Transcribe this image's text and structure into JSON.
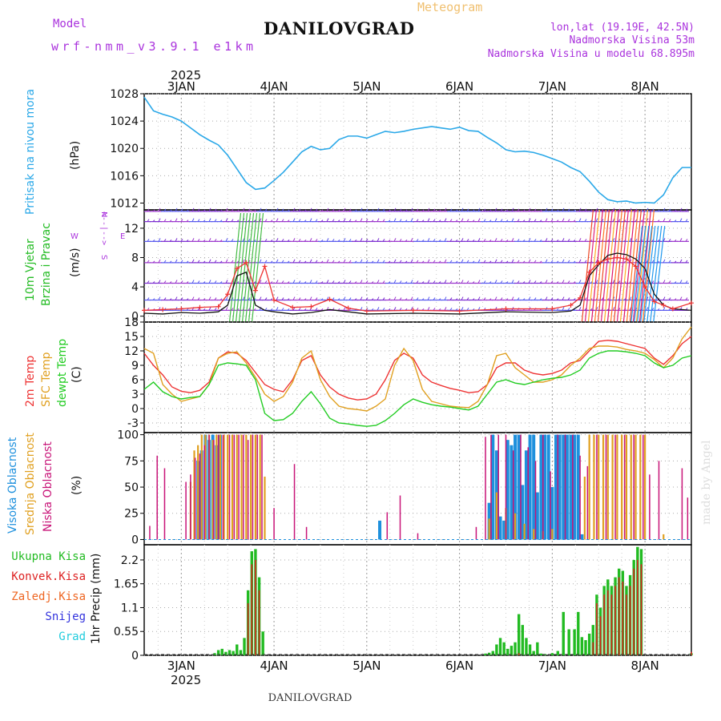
{
  "header": {
    "model_label": "Model",
    "model_name": "wrf-nmm_v3.9.1  e1km",
    "title": "DANILOVGRAD",
    "subtitle": "Meteogram",
    "lonlat": "lon,lat (19.19E, 42.5N)",
    "elev": "Nadmorska Visina 53m",
    "elev_model": "Nadmorska Visina u modelu 68.895m",
    "credit": "made by Angel",
    "footer": "DANILOVGRAD"
  },
  "colors": {
    "pressure": "#2aa8e8",
    "wind_labels": "#22bb22",
    "temp2m": "#ee3333",
    "sfc": "#e0a020",
    "dewpt": "#22cc22",
    "high_cloud": "#1e90dd",
    "mid_cloud": "#e0a020",
    "low_cloud": "#c81478",
    "precip_total": "#22bb22",
    "precip_conv": "#dd2222",
    "frozen": "#ee6622",
    "snow": "#3333dd",
    "hail": "#22ccdd",
    "purple": "#aa33dd"
  },
  "chart_data": [
    {
      "type": "line",
      "name": "pressure",
      "ylabel": [
        "Pritisak na nivou mora",
        "(hPa)"
      ],
      "ylim": [
        1011,
        1028
      ],
      "yticks": [
        1012,
        1016,
        1020,
        1024,
        1028
      ],
      "xlim": [
        2.6,
        8.5
      ],
      "x_top_labels": {
        "year": "2025",
        "days": [
          "3JAN",
          "4JAN",
          "5JAN",
          "6JAN",
          "7JAN",
          "8JAN"
        ]
      },
      "x": [
        2.6,
        2.7,
        2.8,
        2.9,
        3.0,
        3.1,
        3.2,
        3.3,
        3.4,
        3.5,
        3.6,
        3.7,
        3.8,
        3.9,
        4.0,
        4.1,
        4.2,
        4.3,
        4.4,
        4.5,
        4.6,
        4.7,
        4.8,
        4.9,
        5.0,
        5.1,
        5.2,
        5.3,
        5.4,
        5.5,
        5.6,
        5.7,
        5.8,
        5.9,
        6.0,
        6.1,
        6.2,
        6.3,
        6.4,
        6.5,
        6.6,
        6.7,
        6.8,
        6.9,
        7.0,
        7.1,
        7.2,
        7.3,
        7.4,
        7.5,
        7.6,
        7.7,
        7.8,
        7.9,
        8.0,
        8.1,
        8.2,
        8.3,
        8.4,
        8.5
      ],
      "values": [
        1027.5,
        1025.5,
        1025.0,
        1024.6,
        1024.0,
        1023.0,
        1022.0,
        1021.2,
        1020.5,
        1019.0,
        1017.0,
        1015.0,
        1014.0,
        1014.2,
        1015.3,
        1016.5,
        1018.0,
        1019.5,
        1020.3,
        1019.8,
        1020.0,
        1021.3,
        1021.8,
        1021.8,
        1021.5,
        1022.0,
        1022.5,
        1022.3,
        1022.5,
        1022.8,
        1023.0,
        1023.2,
        1023.0,
        1022.8,
        1023.1,
        1022.6,
        1022.5,
        1021.6,
        1020.8,
        1019.8,
        1019.5,
        1019.6,
        1019.4,
        1019.0,
        1018.5,
        1018.0,
        1017.2,
        1016.6,
        1015.2,
        1013.6,
        1012.5,
        1012.2,
        1012.3,
        1012.0,
        1012.1,
        1012.0,
        1013.2,
        1015.7,
        1017.2,
        1017.2
      ]
    },
    {
      "type": "line",
      "name": "wind",
      "ylabel": [
        "10m Vjetar",
        "Brzina i Pravac",
        "(m/s)"
      ],
      "compass": {
        "w": "W",
        "e": "E",
        "n": "N",
        "s": "S"
      },
      "ylim": [
        -0.8,
        14.5
      ],
      "yticks": [
        0,
        4,
        8,
        12
      ],
      "xlim": [
        2.6,
        8.5
      ],
      "levels": [
        0.8,
        2.2,
        4.5,
        7.3,
        10.2,
        12.9,
        14.3
      ],
      "x": [
        2.6,
        2.8,
        3.0,
        3.2,
        3.4,
        3.5,
        3.6,
        3.7,
        3.8,
        3.9,
        4.0,
        4.2,
        4.4,
        4.6,
        4.8,
        5.0,
        5.5,
        6.0,
        6.5,
        7.0,
        7.2,
        7.3,
        7.4,
        7.5,
        7.6,
        7.7,
        7.8,
        7.9,
        8.0,
        8.1,
        8.2,
        8.3,
        8.5
      ],
      "speed": [
        0.4,
        0.3,
        0.5,
        0.4,
        0.6,
        1.5,
        5.5,
        6.0,
        1.5,
        0.8,
        0.6,
        0.3,
        0.5,
        0.9,
        0.6,
        0.3,
        0.4,
        0.3,
        0.6,
        0.5,
        0.7,
        1.5,
        5.5,
        7.0,
        8.3,
        8.6,
        8.4,
        7.8,
        6.5,
        3.0,
        1.5,
        1.0,
        0.8
      ],
      "gust": [
        0.8,
        0.9,
        1.0,
        1.2,
        1.3,
        3.0,
        6.5,
        7.3,
        3.5,
        6.8,
        2.2,
        1.2,
        1.3,
        2.3,
        1.1,
        0.7,
        0.8,
        0.7,
        1.0,
        1.0,
        1.5,
        2.5,
        6.0,
        7.3,
        7.8,
        8.0,
        7.8,
        6.8,
        4.0,
        2.0,
        1.5,
        1.0,
        1.8
      ]
    },
    {
      "type": "line",
      "name": "temperature",
      "ylabel": [
        "2m Temp",
        "SFC Temp",
        "dewpt Temp",
        "(C)"
      ],
      "ylim": [
        -5,
        18
      ],
      "yticks": [
        -3,
        0,
        3,
        6,
        9,
        12,
        15,
        18
      ],
      "xlim": [
        2.6,
        8.5
      ],
      "x": [
        2.6,
        2.7,
        2.8,
        2.9,
        3.0,
        3.1,
        3.2,
        3.3,
        3.4,
        3.5,
        3.6,
        3.7,
        3.8,
        3.9,
        4.0,
        4.1,
        4.2,
        4.3,
        4.4,
        4.5,
        4.6,
        4.7,
        4.8,
        4.9,
        5.0,
        5.1,
        5.2,
        5.3,
        5.4,
        5.5,
        5.6,
        5.7,
        5.8,
        5.9,
        6.0,
        6.1,
        6.2,
        6.3,
        6.4,
        6.5,
        6.6,
        6.7,
        6.8,
        6.9,
        7.0,
        7.1,
        7.2,
        7.3,
        7.4,
        7.5,
        7.6,
        7.7,
        7.8,
        7.9,
        8.0,
        8.1,
        8.2,
        8.3,
        8.4,
        8.5
      ],
      "series": [
        {
          "name": "2m Temp",
          "values": [
            11.5,
            9.0,
            7.0,
            4.5,
            3.6,
            3.3,
            3.8,
            5.5,
            10.5,
            11.8,
            11.5,
            10.0,
            7.5,
            5.0,
            4.0,
            3.5,
            6.0,
            10.0,
            11.0,
            7.0,
            4.5,
            3.0,
            2.2,
            1.8,
            2.0,
            3.0,
            6.0,
            10.0,
            11.5,
            10.5,
            7.0,
            5.5,
            4.8,
            4.2,
            3.8,
            3.3,
            3.5,
            5.0,
            8.5,
            9.5,
            9.5,
            8.0,
            7.3,
            7.0,
            7.3,
            8.0,
            9.5,
            10.0,
            12.0,
            14.0,
            14.2,
            14.0,
            13.5,
            13.0,
            12.5,
            10.5,
            9.2,
            11.0,
            13.5,
            15.0
          ]
        },
        {
          "name": "SFC Temp",
          "values": [
            12.5,
            11.5,
            5.0,
            3.0,
            1.5,
            2.0,
            2.5,
            5.0,
            10.5,
            11.5,
            11.8,
            9.5,
            6.5,
            3.0,
            1.5,
            2.5,
            5.5,
            10.5,
            12.0,
            6.0,
            2.5,
            0.5,
            0.0,
            -0.2,
            -0.5,
            0.5,
            2.0,
            9.0,
            12.5,
            10.0,
            4.0,
            1.5,
            1.0,
            0.5,
            0.3,
            0.2,
            1.5,
            5.0,
            11.0,
            11.5,
            8.5,
            7.0,
            5.5,
            5.5,
            6.0,
            7.0,
            9.0,
            10.5,
            12.5,
            13.0,
            13.0,
            12.8,
            12.3,
            12.0,
            11.5,
            10.2,
            8.5,
            10.5,
            14.5,
            17.0
          ]
        },
        {
          "name": "dewpt Temp",
          "values": [
            4.0,
            5.5,
            3.5,
            2.5,
            2.0,
            2.3,
            2.5,
            5.0,
            9.0,
            9.5,
            9.3,
            9.0,
            6.0,
            -1.0,
            -2.5,
            -2.3,
            -1.0,
            1.5,
            3.5,
            1.0,
            -2.0,
            -3.0,
            -3.2,
            -3.5,
            -3.7,
            -3.5,
            -2.5,
            -1.0,
            0.8,
            2.0,
            1.3,
            0.8,
            0.5,
            0.3,
            0.0,
            -0.3,
            0.5,
            3.0,
            5.5,
            6.0,
            5.3,
            5.0,
            5.5,
            6.0,
            6.3,
            6.5,
            7.0,
            8.0,
            10.5,
            11.5,
            12.0,
            12.0,
            11.8,
            11.5,
            11.0,
            9.5,
            8.5,
            9.0,
            10.5,
            11.0
          ]
        }
      ]
    },
    {
      "type": "bar",
      "name": "cloud",
      "ylabel": [
        "Visoka Oblacnost",
        "Srednja Oblacnost",
        "Niska Oblacnost",
        "(%)"
      ],
      "ylim": [
        -5,
        102
      ],
      "yticks": [
        0,
        25,
        50,
        75,
        100
      ],
      "xlim": [
        2.6,
        8.5
      ],
      "series": [
        {
          "name": "Visoka Oblacnost",
          "x": [
            3.18,
            3.22,
            3.26,
            3.3,
            3.34,
            3.38,
            3.42,
            5.14,
            6.32,
            6.36,
            6.4,
            6.44,
            6.48,
            6.52,
            6.56,
            6.6,
            6.64,
            6.68,
            6.72,
            6.76,
            6.8,
            6.84,
            6.88,
            6.92,
            6.96,
            7.0,
            7.04,
            7.08,
            7.12,
            7.16,
            7.2,
            7.24,
            7.28,
            7.32
          ],
          "values": [
            75,
            85,
            100,
            95,
            100,
            90,
            100,
            18,
            35,
            100,
            85,
            22,
            18,
            95,
            90,
            100,
            100,
            52,
            85,
            100,
            100,
            45,
            100,
            100,
            100,
            50,
            100,
            100,
            100,
            100,
            100,
            100,
            100,
            5
          ]
        },
        {
          "name": "Srednja Oblacnost",
          "x": [
            3.1,
            3.14,
            3.18,
            3.22,
            3.26,
            3.3,
            3.34,
            3.38,
            3.42,
            3.46,
            3.5,
            3.55,
            3.6,
            3.65,
            3.7,
            3.75,
            3.8,
            3.85,
            3.9,
            6.32,
            6.4,
            6.5,
            6.6,
            6.7,
            6.8,
            6.9,
            7.0,
            7.35,
            7.4,
            7.45,
            7.5,
            7.55,
            7.6,
            7.65,
            7.7,
            7.75,
            7.8,
            7.85,
            7.9,
            7.95,
            8.0,
            8.2
          ],
          "values": [
            55,
            85,
            90,
            100,
            100,
            100,
            95,
            100,
            100,
            100,
            100,
            100,
            100,
            100,
            100,
            100,
            100,
            100,
            60,
            20,
            45,
            30,
            25,
            15,
            10,
            8,
            10,
            60,
            100,
            100,
            100,
            100,
            100,
            100,
            100,
            100,
            100,
            100,
            100,
            100,
            100,
            5
          ]
        },
        {
          "name": "Niska Oblacnost",
          "x": [
            2.66,
            2.74,
            2.82,
            3.05,
            3.1,
            3.15,
            3.2,
            3.25,
            3.3,
            3.35,
            3.4,
            3.45,
            3.52,
            3.57,
            3.62,
            3.67,
            3.72,
            3.77,
            3.82,
            3.87,
            4.0,
            4.22,
            4.35,
            5.22,
            5.36,
            5.55,
            6.18,
            6.28,
            6.34,
            6.42,
            6.5,
            6.58,
            6.66,
            6.74,
            6.82,
            6.9,
            6.98,
            7.06,
            7.14,
            7.22,
            7.3,
            7.38,
            7.48,
            7.58,
            7.68,
            7.78,
            7.88,
            7.98,
            8.05,
            8.15,
            8.4,
            8.46
          ],
          "values": [
            13,
            80,
            68,
            55,
            62,
            78,
            82,
            90,
            100,
            95,
            100,
            100,
            100,
            100,
            100,
            100,
            95,
            100,
            100,
            100,
            30,
            72,
            12,
            26,
            42,
            6,
            12,
            98,
            100,
            100,
            100,
            85,
            100,
            88,
            75,
            100,
            65,
            100,
            100,
            100,
            80,
            70,
            100,
            100,
            100,
            100,
            100,
            100,
            62,
            75,
            68,
            40
          ]
        }
      ]
    },
    {
      "type": "bar",
      "name": "precip",
      "ylabel": [
        "Ukupna Kisa",
        "Konvek.Kisa",
        "Zaledj.Kisa",
        "Snijeg",
        "Grad",
        "1hr Precip (mm)"
      ],
      "ylim": [
        0,
        2.55
      ],
      "yticks": [
        0,
        0.55,
        1.1,
        1.65,
        2.2
      ],
      "ytick_labels": [
        "0",
        "0.55",
        "1.1",
        "1.65",
        "2.2"
      ],
      "xlim": [
        2.6,
        8.5
      ],
      "x_bottom_labels": {
        "year": "2025",
        "days": [
          "3JAN",
          "4JAN",
          "5JAN",
          "6JAN",
          "7JAN",
          "8JAN"
        ]
      },
      "series": [
        {
          "name": "Ukupna Kisa",
          "x": [
            3.36,
            3.4,
            3.44,
            3.48,
            3.52,
            3.56,
            3.6,
            3.64,
            3.68,
            3.72,
            3.76,
            3.8,
            3.84,
            3.88,
            6.28,
            6.32,
            6.36,
            6.4,
            6.44,
            6.48,
            6.52,
            6.56,
            6.6,
            6.64,
            6.68,
            6.72,
            6.76,
            6.8,
            6.84,
            6.88,
            6.92,
            7.0,
            7.06,
            7.12,
            7.18,
            7.24,
            7.28,
            7.32,
            7.36,
            7.4,
            7.44,
            7.48,
            7.52,
            7.56,
            7.6,
            7.64,
            7.68,
            7.72,
            7.76,
            7.8,
            7.84,
            7.88,
            7.92,
            7.96,
            8.5
          ],
          "values": [
            0.05,
            0.12,
            0.15,
            0.08,
            0.12,
            0.1,
            0.25,
            0.12,
            0.4,
            1.5,
            2.4,
            2.45,
            1.8,
            0.55,
            0.04,
            0.06,
            0.1,
            0.25,
            0.4,
            0.3,
            0.15,
            0.22,
            0.3,
            0.95,
            0.7,
            0.4,
            0.25,
            0.1,
            0.3,
            0.04,
            0.03,
            0.05,
            0.1,
            1.0,
            0.6,
            0.6,
            1.0,
            0.42,
            0.35,
            0.5,
            0.7,
            1.4,
            1.1,
            1.6,
            1.75,
            1.6,
            1.8,
            2.0,
            1.95,
            1.6,
            1.85,
            2.2,
            2.5,
            2.45,
            0.05
          ]
        },
        {
          "name": "Konvek.Kisa",
          "x": [
            3.72,
            3.76,
            3.8,
            3.84,
            6.64,
            7.44,
            7.48,
            7.52,
            7.56,
            7.6,
            7.64,
            7.68,
            7.72,
            7.76,
            7.8,
            7.84,
            7.88,
            7.92,
            7.96,
            8.5
          ],
          "values": [
            1.2,
            2.1,
            2.2,
            1.5,
            0.05,
            0.3,
            1.2,
            0.9,
            1.4,
            1.5,
            1.4,
            1.6,
            1.8,
            1.7,
            1.4,
            1.6,
            2.0,
            2.2,
            2.1,
            0.08
          ]
        }
      ]
    }
  ]
}
